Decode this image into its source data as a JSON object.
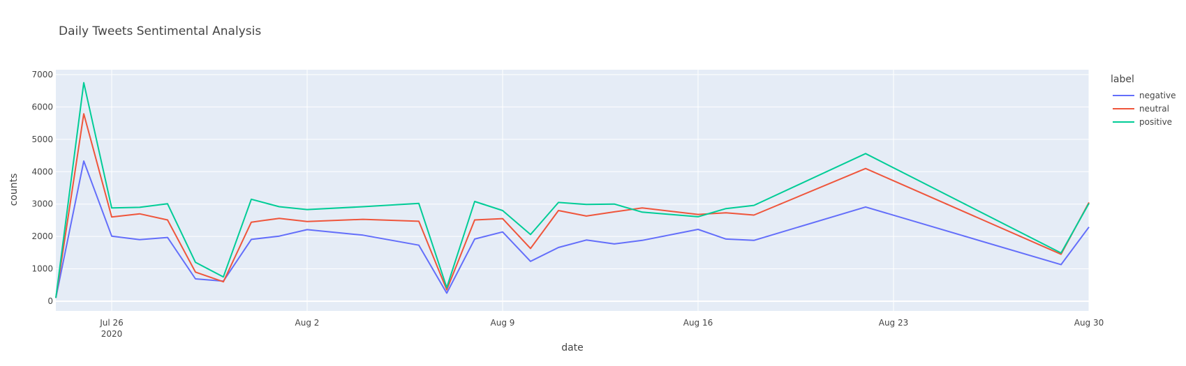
{
  "chart_data": {
    "type": "line",
    "title": "Daily Tweets Sentimental Analysis",
    "xlabel": "date",
    "ylabel": "counts",
    "x_axis": {
      "type": "date",
      "range": [
        "2020-07-24",
        "2020-08-30"
      ],
      "ticks": [
        {
          "date": "2020-07-26",
          "label": "Jul 26",
          "sublabel": "2020"
        },
        {
          "date": "2020-08-02",
          "label": "Aug 2"
        },
        {
          "date": "2020-08-09",
          "label": "Aug 9"
        },
        {
          "date": "2020-08-16",
          "label": "Aug 16"
        },
        {
          "date": "2020-08-23",
          "label": "Aug 23"
        },
        {
          "date": "2020-08-30",
          "label": "Aug 30"
        }
      ]
    },
    "y_axis": {
      "range": [
        -300,
        7150
      ],
      "ticks": [
        0,
        1000,
        2000,
        3000,
        4000,
        5000,
        6000,
        7000
      ]
    },
    "grid": true,
    "legend": {
      "title": "label",
      "position": "right"
    },
    "x": [
      "2020-07-24",
      "2020-07-25",
      "2020-07-26",
      "2020-07-27",
      "2020-07-28",
      "2020-07-29",
      "2020-07-30",
      "2020-07-31",
      "2020-08-01",
      "2020-08-02",
      "2020-08-04",
      "2020-08-06",
      "2020-08-07",
      "2020-08-08",
      "2020-08-09",
      "2020-08-10",
      "2020-08-11",
      "2020-08-12",
      "2020-08-13",
      "2020-08-14",
      "2020-08-16",
      "2020-08-17",
      "2020-08-18",
      "2020-08-22",
      "2020-08-29",
      "2020-08-30"
    ],
    "series": [
      {
        "name": "negative",
        "color": "#636efa",
        "values": [
          100,
          4330,
          2010,
          1900,
          1970,
          690,
          620,
          1910,
          2010,
          2210,
          2040,
          1730,
          250,
          1920,
          2140,
          1230,
          1660,
          1890,
          1770,
          1880,
          2220,
          1920,
          1880,
          2910,
          1130,
          2290
        ]
      },
      {
        "name": "neutral",
        "color": "#ef553b",
        "values": [
          100,
          5790,
          2600,
          2700,
          2510,
          900,
          600,
          2440,
          2560,
          2460,
          2530,
          2470,
          350,
          2510,
          2550,
          1630,
          2800,
          2630,
          2760,
          2880,
          2680,
          2730,
          2660,
          4100,
          1450,
          3050
        ]
      },
      {
        "name": "positive",
        "color": "#00cc96",
        "values": [
          100,
          6750,
          2880,
          2900,
          3010,
          1200,
          750,
          3150,
          2920,
          2830,
          2920,
          3020,
          420,
          3080,
          2800,
          2060,
          3050,
          2990,
          3000,
          2750,
          2610,
          2860,
          2960,
          4560,
          1490,
          3020
        ]
      }
    ]
  }
}
